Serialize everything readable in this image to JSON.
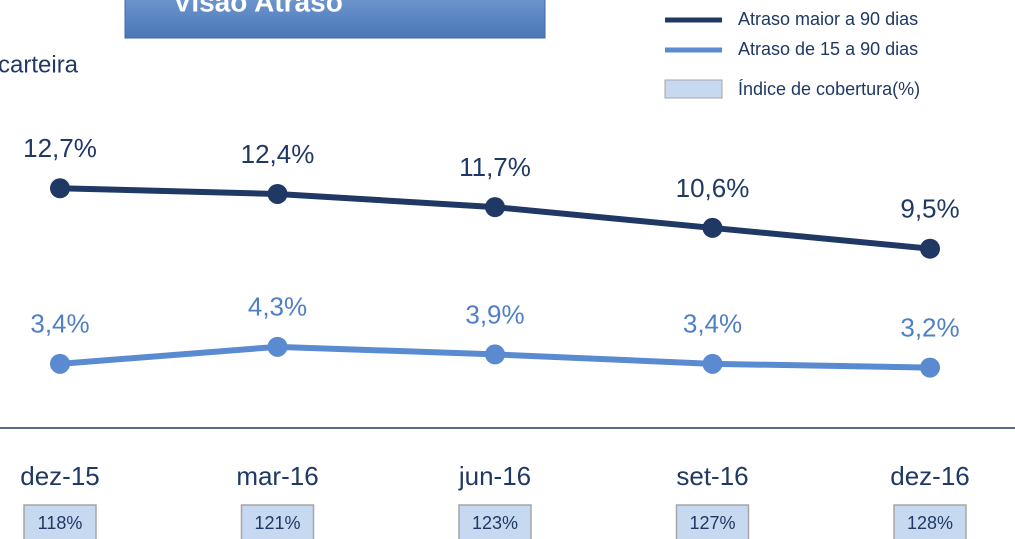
{
  "chart_data": {
    "type": "line",
    "title": "Visão Atraso",
    "subtitle": "carteira",
    "categories": [
      "dez-15",
      "mar-16",
      "jun-16",
      "set-16",
      "dez-16"
    ],
    "series": [
      {
        "name": "Atraso maior a 90 dias",
        "color": "#1f3864",
        "values": [
          12.7,
          12.4,
          11.7,
          10.6,
          9.5
        ],
        "value_labels": [
          "12,7%",
          "12,4%",
          "11,7%",
          "10,6%",
          "9,5%"
        ]
      },
      {
        "name": "Atraso de 15 a 90 dias",
        "color": "#5a8ad0",
        "values": [
          3.4,
          4.3,
          3.9,
          3.4,
          3.2
        ],
        "value_labels": [
          "3,4%",
          "4,3%",
          "3,9%",
          "3,4%",
          "3,2%"
        ]
      }
    ],
    "coverage": {
      "name": "Índice de cobertura(%)",
      "color": "#c6d9f1",
      "values": [
        118,
        121,
        123,
        127,
        128
      ],
      "value_labels": [
        "118%",
        "121%",
        "123%",
        "127%",
        "128%"
      ]
    },
    "ylim": [
      0,
      16
    ]
  }
}
